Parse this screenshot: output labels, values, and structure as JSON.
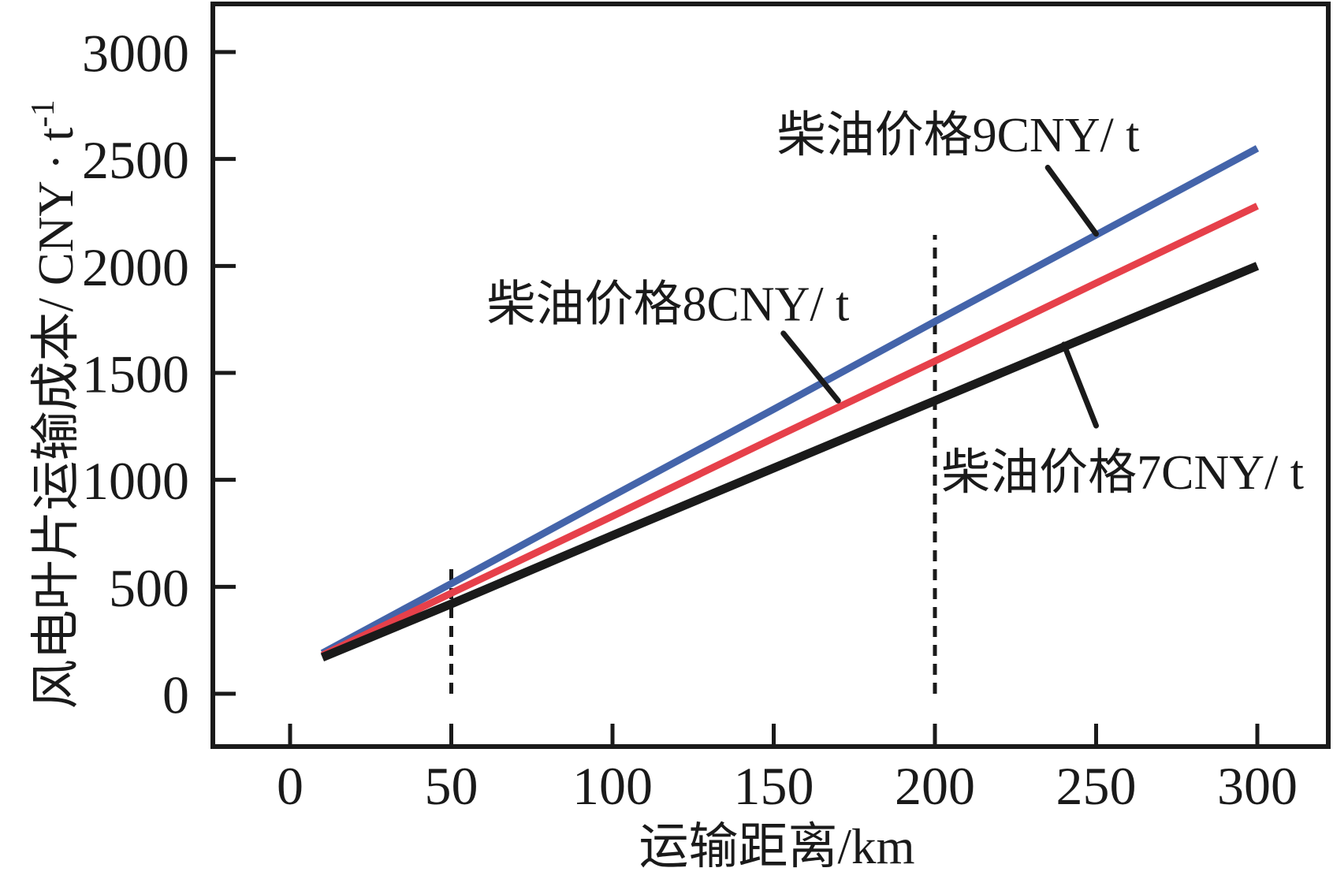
{
  "figure": {
    "background": "#ffffff",
    "axis_color": "#1a1a1a",
    "annotation_color": "#1a1a1a"
  },
  "chart_data": {
    "type": "line",
    "title": "",
    "xlabel": "运输距离/km",
    "ylabel": "风电叶片运输成本/ CNY·t⁻¹",
    "ylabel_main": "风电叶片运输成本/ CNY · t",
    "ylabel_superscript": "-1",
    "xlim": [
      0,
      300
    ],
    "ylim": [
      0,
      3000
    ],
    "x_ticks": [
      0,
      50,
      100,
      150,
      200,
      250,
      300
    ],
    "y_ticks": [
      0,
      500,
      1000,
      1500,
      2000,
      2500,
      3000
    ],
    "grid": false,
    "legend_position": "inline-annotations",
    "x": [
      10,
      50,
      100,
      150,
      200,
      250,
      300
    ],
    "series": [
      {
        "id": "diesel-9cny",
        "name": "柴油价格9CNY/ t",
        "color": "#4464aa",
        "stroke_width": 9,
        "values": [
          190,
          515,
          925,
          1330,
          1740,
          2145,
          2550
        ]
      },
      {
        "id": "diesel-8cny",
        "name": "柴油价格8CNY/ t",
        "color": "#e6404a",
        "stroke_width": 9,
        "values": [
          180,
          470,
          830,
          1195,
          1555,
          1920,
          2280
        ]
      },
      {
        "id": "diesel-7cny",
        "name": "柴油价格7CNY/ t",
        "color": "#1a1a1a",
        "stroke_width": 11,
        "values": [
          170,
          420,
          740,
          1055,
          1370,
          1685,
          2000
        ]
      }
    ],
    "guides": [
      {
        "id": "guide-50km",
        "at_km": 50,
        "value_from": 0,
        "value_to": 600
      },
      {
        "id": "guide-200km",
        "at_km": 200,
        "value_from": 0,
        "value_to": 2145
      }
    ],
    "annotations": [
      {
        "id": "diesel-9cny",
        "text": "柴油价格9CNY/ t",
        "text_anchor": {
          "km": 151,
          "value": 2535
        },
        "leader": {
          "from": {
            "km": 235,
            "value": 2460
          },
          "to": {
            "km": 250,
            "value": 2150
          }
        }
      },
      {
        "id": "diesel-8cny",
        "text": "柴油价格8CNY/ t",
        "text_anchor": {
          "km": 61,
          "value": 1745
        },
        "leader": {
          "from": {
            "km": 153,
            "value": 1685
          },
          "to": {
            "km": 170,
            "value": 1370
          }
        }
      },
      {
        "id": "diesel-7cny",
        "text": "柴油价格7CNY/ t",
        "text_anchor": {
          "km": 202,
          "value": 958
        },
        "leader": {
          "from": {
            "km": 240,
            "value": 1633
          },
          "to": {
            "km": 250,
            "value": 1253
          }
        }
      }
    ]
  }
}
